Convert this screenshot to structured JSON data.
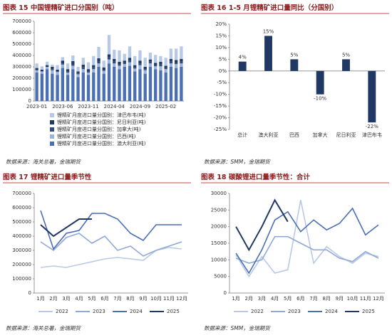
{
  "chart_data": [
    {
      "type": "stacked_bar",
      "title": "图表 15 中国锂精矿进口分国别（吨）",
      "source": "数据来源：海关总署，金瑞期货",
      "categories": [
        "2023-01",
        null,
        null,
        null,
        null,
        "2023-06",
        null,
        null,
        null,
        null,
        "2023-11",
        null,
        null,
        null,
        null,
        "2024-04",
        null,
        null,
        null,
        null,
        "2024-09",
        null,
        null,
        null,
        null,
        "2025-02",
        null,
        null,
        null
      ],
      "ylim": [
        0,
        700000
      ],
      "yticks": [
        0,
        100000,
        200000,
        300000,
        400000,
        500000,
        600000,
        700000
      ],
      "series": [
        {
          "name": "锂精矿月度进口量分国别：澳大利亚(吨)",
          "color": "#4a6fb5",
          "values": [
            250000,
            240000,
            280000,
            240000,
            230000,
            290000,
            230000,
            280000,
            210000,
            250000,
            230000,
            250000,
            300000,
            240000,
            330000,
            300000,
            280000,
            300000,
            310000,
            260000,
            280000,
            240000,
            300000,
            280000,
            270000,
            250000,
            300000,
            290000,
            300000
          ]
        },
        {
          "name": "锂精矿月度进口量分国别：巴西(吨)",
          "color": "#9db3dc",
          "values": [
            20000,
            20000,
            20000,
            30000,
            25000,
            30000,
            20000,
            30000,
            25000,
            30000,
            20000,
            30000,
            30000,
            25000,
            35000,
            30000,
            30000,
            25000,
            30000,
            25000,
            35000,
            30000,
            30000,
            25000,
            35000,
            30000,
            30000,
            35000,
            30000
          ]
        },
        {
          "name": "锂精矿月度进口量分国别：加拿大(吨)",
          "color": "#2e4d7b",
          "values": [
            0,
            0,
            0,
            10000,
            5000,
            10000,
            10000,
            15000,
            10000,
            15000,
            10000,
            15000,
            20000,
            10000,
            20000,
            15000,
            15000,
            10000,
            15000,
            10000,
            15000,
            10000,
            15000,
            10000,
            15000,
            10000,
            15000,
            10000,
            15000
          ]
        },
        {
          "name": "锂精矿月度进口量分国别：尼日利亚(吨)",
          "color": "#1f3864",
          "values": [
            20000,
            15000,
            15000,
            20000,
            15000,
            25000,
            20000,
            25000,
            15000,
            25000,
            20000,
            20000,
            25000,
            20000,
            25000,
            25000,
            20000,
            20000,
            25000,
            20000,
            25000,
            20000,
            20000,
            20000,
            25000,
            20000,
            25000,
            25000,
            25000
          ]
        },
        {
          "name": "锂精矿月度进口量分国别：津巴布韦(吨)",
          "color": "#b8c9e8",
          "values": [
            40000,
            30000,
            30000,
            20000,
            40000,
            30000,
            50000,
            50000,
            40000,
            60000,
            60000,
            80000,
            100000,
            60000,
            170000,
            80000,
            100000,
            60000,
            100000,
            80000,
            90000,
            80000,
            60000,
            70000,
            50000,
            70000,
            90000,
            100000,
            110000
          ]
        }
      ]
    },
    {
      "type": "bar",
      "title": "图表 16 1-5 月锂精矿进口量同比（分国别）",
      "source": "数据来源：SMM，金瑞期货",
      "categories": [
        "总计",
        "澳大利亚",
        "巴西",
        "加拿大",
        "尼日利亚",
        "津巴布韦"
      ],
      "values": [
        4,
        15,
        5,
        -10,
        5,
        -22
      ],
      "value_labels": [
        "4%",
        "15%",
        "5%",
        "-10%",
        "5%",
        "-22%"
      ],
      "color": "#1f3864",
      "ylim": [
        -25,
        20
      ],
      "yticks": [
        {
          "value": -25,
          "label": "-25%"
        },
        {
          "value": -20,
          "label": "-20%"
        },
        {
          "value": -15,
          "label": "-15%"
        },
        {
          "value": -10,
          "label": "-10%"
        },
        {
          "value": -5,
          "label": "-5%"
        },
        {
          "value": 0,
          "label": "0%"
        },
        {
          "value": 5,
          "label": "5%"
        },
        {
          "value": 10,
          "label": "10%"
        },
        {
          "value": 15,
          "label": "15%"
        },
        {
          "value": 20,
          "label": "20%"
        }
      ]
    },
    {
      "type": "line",
      "title": "图表 17 锂精矿进口量季节性",
      "source": "数据来源：海关总署，金瑞期货",
      "categories": [
        "1月",
        "2月",
        "3月",
        "4月",
        "5月",
        "6月",
        "7月",
        "8月",
        "9月",
        "10月",
        "11月",
        "12月"
      ],
      "ylim": [
        0,
        700000
      ],
      "yticks": [
        0,
        100000,
        200000,
        300000,
        400000,
        500000,
        600000,
        700000
      ],
      "series": [
        {
          "name": "2022",
          "color": "#b8c9e8",
          "values": [
            180000,
            190000,
            180000,
            200000,
            220000,
            240000,
            250000,
            240000,
            230000,
            300000,
            320000,
            310000
          ]
        },
        {
          "name": "2023",
          "color": "#8ea9d8",
          "values": [
            360000,
            300000,
            390000,
            420000,
            350000,
            400000,
            300000,
            330000,
            260000,
            300000,
            330000,
            360000
          ]
        },
        {
          "name": "2024",
          "color": "#4a6fb5",
          "values": [
            580000,
            310000,
            420000,
            440000,
            560000,
            560000,
            520000,
            420000,
            370000,
            480000,
            480000,
            480000
          ]
        },
        {
          "name": "2025",
          "color": "#1f3864",
          "values": [
            480000,
            400000,
            460000,
            520000,
            520000,
            null,
            null,
            null,
            null,
            null,
            null,
            null
          ]
        }
      ]
    },
    {
      "type": "line",
      "title": "图表 18 碳酸锂进口量季节性：合计",
      "source": "数据来源：SMM，金瑞期货",
      "categories": [
        "1月",
        "2月",
        "3月",
        "4月",
        "5月",
        "6月",
        "7月",
        "8月",
        "9月",
        "10月",
        "11月",
        "12月"
      ],
      "ylim": [
        0,
        30000
      ],
      "yticks": [
        0,
        5000,
        10000,
        15000,
        20000,
        25000,
        30000
      ],
      "series": [
        {
          "name": "2022",
          "color": "#b8c9e8",
          "values": [
            11500,
            5000,
            11000,
            6000,
            7000,
            28000,
            9000,
            14000,
            11000,
            9000,
            12000,
            11000
          ]
        },
        {
          "name": "2023",
          "color": "#8ea9d8",
          "values": [
            10500,
            9000,
            10000,
            17000,
            17000,
            15000,
            13000,
            13000,
            10500,
            9500,
            12500,
            10500
          ]
        },
        {
          "name": "2024",
          "color": "#4a6fb5",
          "values": [
            12000,
            6000,
            13000,
            22000,
            24500,
            18500,
            22000,
            19000,
            21000,
            25500,
            17500,
            20500
          ]
        },
        {
          "name": "2025",
          "color": "#1f3864",
          "values": [
            20000,
            13000,
            20000,
            28000,
            21500,
            null,
            null,
            null,
            null,
            null,
            null,
            null
          ]
        }
      ]
    }
  ]
}
